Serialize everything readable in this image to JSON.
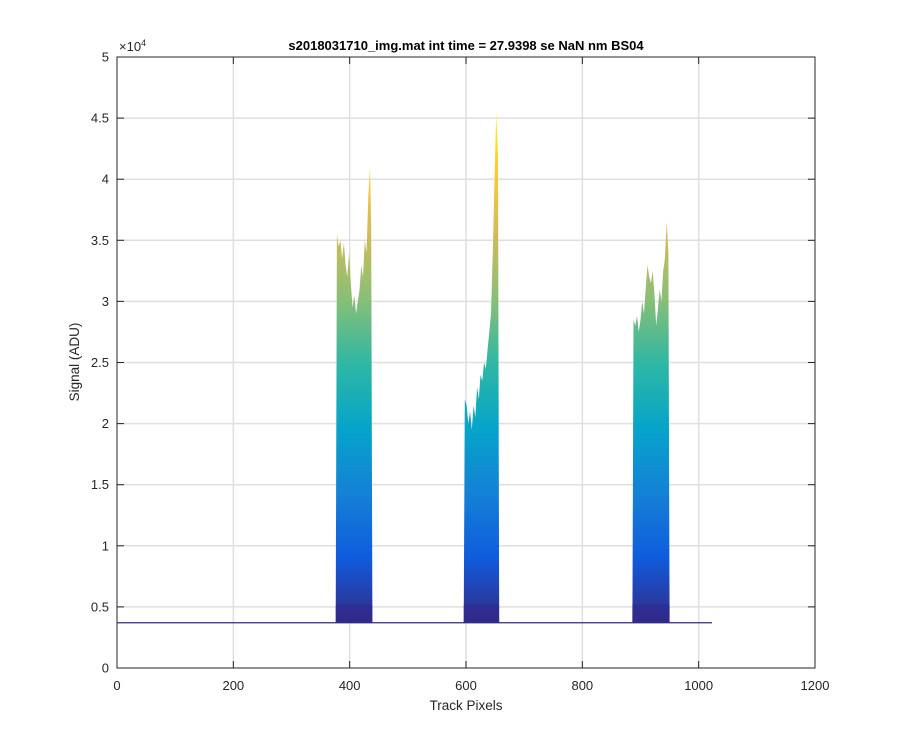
{
  "chart_data": {
    "type": "area",
    "title": "s2018031710_img.mat int time = 27.9398 se  NaN nm BS04",
    "xlabel": "Track Pixels",
    "ylabel": "Signal (ADU)",
    "xlim": [
      0,
      1200
    ],
    "ylim": [
      0,
      50000
    ],
    "x_ticks": [
      0,
      200,
      400,
      600,
      800,
      1000,
      1200
    ],
    "x_tick_labels": [
      "0",
      "200",
      "400",
      "600",
      "800",
      "1000",
      "1200"
    ],
    "y_ticks": [
      0,
      5000,
      10000,
      15000,
      20000,
      25000,
      30000,
      35000,
      40000,
      45000,
      50000
    ],
    "y_tick_labels": [
      "0",
      "0.5",
      "1",
      "1.5",
      "2",
      "2.5",
      "3",
      "3.5",
      "4",
      "4.5",
      "5"
    ],
    "y_exponent_label": "×10",
    "y_exponent_power": "4",
    "grid": true,
    "colormap": [
      "#352a87",
      "#0f5cdd",
      "#1481d6",
      "#06a4ca",
      "#2eb7a4",
      "#87bf77",
      "#d1bb59",
      "#fec832",
      "#f9fb0e"
    ],
    "baseline": {
      "x": [
        0,
        1023
      ],
      "y": 3700
    },
    "peaks": [
      {
        "x": [
          378,
          381,
          384,
          387,
          390,
          393,
          396,
          399,
          402,
          405,
          408,
          411,
          414,
          417,
          420,
          423,
          426,
          429,
          432,
          435,
          437
        ],
        "y": [
          35500,
          34500,
          35000,
          33500,
          34800,
          33000,
          32000,
          34000,
          31500,
          29500,
          30500,
          29000,
          30000,
          31000,
          33000,
          32000,
          35000,
          34000,
          38500,
          41000,
          36000
        ]
      },
      {
        "x": [
          598,
          601,
          604,
          607,
          610,
          613,
          616,
          619,
          622,
          625,
          628,
          631,
          634,
          637,
          640,
          643,
          646,
          649,
          652,
          655
        ],
        "y": [
          22000,
          21500,
          20000,
          21000,
          19500,
          21500,
          20500,
          23000,
          22000,
          24000,
          23500,
          25000,
          24500,
          26000,
          27500,
          29000,
          34000,
          40000,
          45500,
          42000
        ]
      },
      {
        "x": [
          888,
          891,
          894,
          897,
          900,
          903,
          906,
          909,
          912,
          915,
          918,
          921,
          924,
          927,
          930,
          933,
          936,
          939,
          942,
          945,
          948
        ],
        "y": [
          28500,
          28000,
          28800,
          27500,
          28500,
          30000,
          29000,
          31000,
          33000,
          32000,
          31500,
          32500,
          30500,
          28000,
          29500,
          31000,
          30000,
          32500,
          33500,
          36500,
          34000
        ]
      }
    ]
  }
}
